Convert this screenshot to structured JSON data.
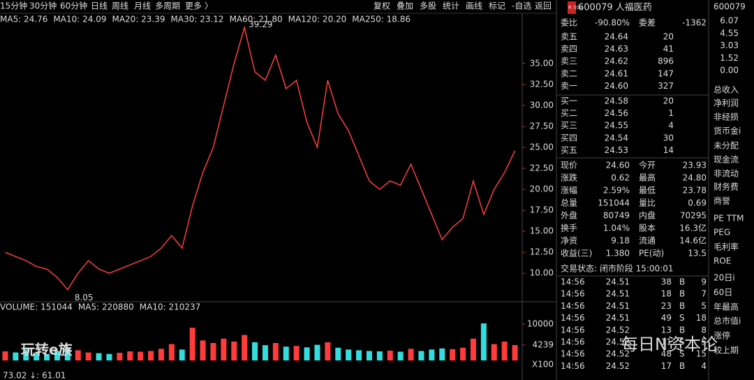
{
  "toolbar": {
    "periods": [
      "15分钟",
      "30分钟",
      "60分钟",
      "日线",
      "周线",
      "月线",
      "多周期",
      "更多 〉"
    ],
    "actions": [
      "复权",
      "叠加",
      "多股",
      "统计",
      "画线",
      "标记",
      "-自选",
      "返回"
    ]
  },
  "chart_data": [
    {
      "type": "line",
      "legend": [
        {
          "name": "MA5: 24.76",
          "color": "#ffffff"
        },
        {
          "name": "MA10: 24.09",
          "color": "#e6c832"
        },
        {
          "name": "MA20: 23.39",
          "color": "#e040e0"
        },
        {
          "name": "MA30: 23.12",
          "color": "#2bd12b"
        },
        {
          "name": "MA60: 21.80",
          "color": "#aaaaaa"
        },
        {
          "name": "MA120: 20.20",
          "color": "#3355ff"
        },
        {
          "name": "MA250: 18.86",
          "color": "#cccccc"
        }
      ],
      "color": "#ff4040",
      "high_label": "39.29",
      "low_label": "8.05",
      "values": [
        12.5,
        12,
        11.5,
        10.8,
        10.5,
        9.5,
        8.05,
        10,
        11.5,
        10.5,
        10,
        10.5,
        11,
        11.5,
        12,
        13,
        14.5,
        13,
        18,
        22,
        25,
        30,
        35,
        39.29,
        34,
        33,
        36,
        32,
        33,
        28,
        25,
        33,
        29,
        27,
        24,
        21,
        20,
        21,
        20.5,
        23,
        20,
        17,
        14,
        15.5,
        16.5,
        21,
        17,
        20,
        22,
        24.6
      ],
      "ylim": [
        7.6,
        40.9
      ],
      "yticks": [
        {
          "value": 35,
          "label": "35.00"
        },
        {
          "value": 32.5,
          "label": "32.50"
        },
        {
          "value": 30,
          "label": "30.00"
        },
        {
          "value": 27.5,
          "label": "27.50"
        },
        {
          "value": 25,
          "label": "25.00"
        },
        {
          "value": 22.5,
          "label": "22.50"
        },
        {
          "value": 20,
          "label": "20.00"
        },
        {
          "value": 17.5,
          "label": "17.50"
        },
        {
          "value": 15,
          "label": "15.00"
        },
        {
          "value": 12.5,
          "label": "12.50"
        },
        {
          "value": 10,
          "label": "10.00"
        }
      ]
    },
    {
      "type": "bar",
      "legend": [
        {
          "name": "VOLUME: 151044",
          "color": "#dddddd"
        },
        {
          "name": "MA5: 220880",
          "color": "#e6c832"
        },
        {
          "name": "MA10: 210237",
          "color": "#e040e0"
        }
      ],
      "up_color": "#ff3b3b",
      "down_color": "#33dddd",
      "unit": "X100",
      "values": [
        2500,
        2200,
        3000,
        2000,
        1800,
        2600,
        3500,
        2800,
        2200,
        2000,
        1800,
        2100,
        2500,
        2400,
        2600,
        3200,
        4500,
        3000,
        9000,
        5500,
        4800,
        6000,
        5200,
        7000,
        5000,
        4200,
        4800,
        3800,
        4000,
        3600,
        4300,
        5000,
        3500,
        3000,
        2800,
        2600,
        2500,
        2700,
        2400,
        3200,
        2600,
        3000,
        3300,
        3100,
        3500,
        6000,
        10200,
        4500,
        5200,
        4239
      ],
      "ylim": [
        0,
        14600
      ],
      "yticks": [
        10000,
        4239
      ]
    }
  ],
  "footer": "73.02 ↓: 61.01",
  "quote": {
    "badge": "R 500",
    "title": "600079 人福医药",
    "ratio": [
      "委比",
      "-90.80%",
      "委差",
      "-1362"
    ],
    "asks": [
      [
        "卖五",
        "24.64",
        "20"
      ],
      [
        "卖四",
        "24.63",
        "41"
      ],
      [
        "卖三",
        "24.62",
        "896"
      ],
      [
        "卖二",
        "24.61",
        "147"
      ],
      [
        "卖一",
        "24.60",
        "327"
      ]
    ],
    "bids": [
      [
        "买一",
        "24.58",
        "20"
      ],
      [
        "买二",
        "24.56",
        "1"
      ],
      [
        "买三",
        "24.55",
        "4"
      ],
      [
        "买四",
        "24.54",
        "30"
      ],
      [
        "买五",
        "24.53",
        "14"
      ]
    ],
    "stats": [
      {
        "cells": [
          "现价",
          "24.60",
          "今开",
          "23.93"
        ],
        "colors": [
          "#ff3b3b",
          "#2bd12b"
        ]
      },
      {
        "cells": [
          "涨跌",
          "0.62",
          "最高",
          "24.80"
        ],
        "colors": [
          "#ff3b3b",
          "#ff3b3b"
        ]
      },
      {
        "cells": [
          "涨幅",
          "2.59%",
          "最低",
          "23.78"
        ],
        "colors": [
          "#ff3b3b",
          "#2bd12b"
        ]
      },
      {
        "cells": [
          "总量",
          "151044",
          "量比",
          "0.69"
        ],
        "colors": [
          "#e6c832",
          "#e6c832"
        ]
      },
      {
        "cells": [
          "外盘",
          "80749",
          "内盘",
          "70295"
        ],
        "colors": [
          "#ff3b3b",
          "#2bd12b"
        ]
      },
      {
        "cells": [
          "换手",
          "1.04%",
          "股本",
          "16.3亿"
        ],
        "colors": [
          "#dddddd",
          "#dddddd"
        ]
      },
      {
        "cells": [
          "净资",
          "9.18",
          "流通",
          "14.6亿"
        ],
        "colors": [
          "#dddddd",
          "#dddddd"
        ]
      },
      {
        "cells": [
          "收益(三)",
          "1.380",
          "PE(动)",
          "13.5"
        ],
        "colors": [
          "#dddddd",
          "#dddddd"
        ]
      }
    ],
    "status": "交易状态: 闭市阶段 15:00:01",
    "trades": [
      [
        "14:56",
        "24.51",
        "38",
        "B",
        "9"
      ],
      [
        "14:56",
        "24.51",
        "18",
        "B",
        "7"
      ],
      [
        "14:56",
        "24.51",
        "23",
        "B",
        "5"
      ],
      [
        "14:56",
        "24.51",
        "49",
        "S",
        "18"
      ],
      [
        "14:56",
        "24.52",
        "13",
        "B",
        "8"
      ],
      [
        "14:56",
        "24.52",
        "11",
        "S",
        "5"
      ],
      [
        "14:56",
        "24.52",
        "48",
        "S",
        "15"
      ],
      [
        "14:56",
        "24.52",
        "17",
        "B",
        "4"
      ]
    ]
  },
  "sidebar": {
    "code": "600079",
    "scale": [
      "6.07",
      "4.55",
      "3.03",
      "1.52",
      "0.00"
    ],
    "labels": [
      "总收入",
      "净利润",
      "非经损",
      "货币金i",
      "未分配",
      "现金流",
      "非流动",
      "财务费",
      "商誉",
      "PE TTM",
      "PEG",
      "毛利率",
      "ROE",
      "20日i",
      "60日",
      "年最高",
      "总市值i",
      "涨停",
      "较上期"
    ]
  },
  "watermark": {
    "brand": "每日N资本论",
    "logo": "玩转e族"
  }
}
